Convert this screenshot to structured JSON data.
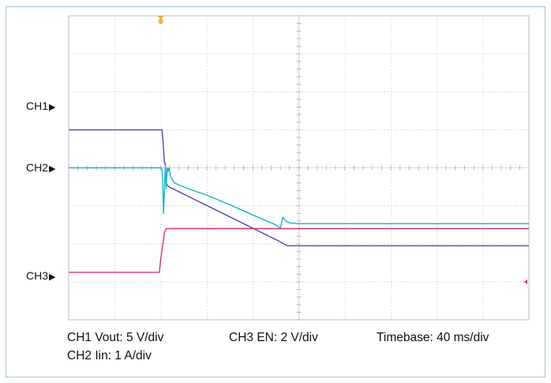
{
  "chart_data": {
    "type": "line",
    "title": "",
    "xlabel": "",
    "ylabel": "",
    "grid": true,
    "divisions": {
      "x": 10,
      "y": 8
    },
    "channels": [
      {
        "id": "CH1",
        "label": "CH1",
        "color": "#4a47b8",
        "ref_div": 3.0
      },
      {
        "id": "CH2",
        "label": "CH2",
        "color": "#1ab3c4",
        "ref_div": 4.0
      },
      {
        "id": "CH3",
        "label": "CH3",
        "color": "#d6336c",
        "ref_div": 6.75
      }
    ],
    "series": [
      {
        "name": "CH1",
        "color": "#4a47b8",
        "x_div": [
          0,
          2.03,
          2.05,
          2.08,
          2.1,
          2.12,
          2.14,
          2.18,
          4.6,
          4.75,
          10
        ],
        "y_div": [
          3.0,
          3.0,
          3.3,
          3.85,
          3.9,
          4.4,
          4.45,
          4.5,
          5.95,
          6.05,
          6.05
        ]
      },
      {
        "name": "CH2",
        "color": "#1ab3c4",
        "x_div": [
          0,
          2.02,
          2.04,
          2.06,
          2.08,
          2.1,
          2.12,
          2.14,
          2.16,
          2.18,
          2.22,
          2.3,
          2.6,
          3.0,
          3.5,
          4.0,
          4.5,
          4.6,
          4.65,
          4.72,
          4.8,
          5.0,
          10
        ],
        "y_div": [
          4.0,
          4.0,
          4.15,
          5.2,
          4.6,
          3.95,
          4.55,
          4.0,
          4.1,
          4.0,
          4.25,
          4.4,
          4.55,
          4.72,
          4.97,
          5.24,
          5.5,
          5.6,
          5.3,
          5.4,
          5.45,
          5.47,
          5.47
        ]
      },
      {
        "name": "CH3",
        "color": "#d6336c",
        "x_div": [
          0,
          1.97,
          2.0,
          2.08,
          2.12,
          2.2,
          10
        ],
        "y_div": [
          6.75,
          6.75,
          6.4,
          5.7,
          5.6,
          5.6,
          5.6
        ]
      }
    ],
    "trigger_marker": {
      "label": "T",
      "color": "#e8a030",
      "x_div": 2.0
    },
    "ch3_side_marker": {
      "color": "#d6336c",
      "y_div": 7.0
    }
  },
  "caption": {
    "ch1": "CH1 Vout: 5 V/div",
    "ch3": "CH3 EN: 2 V/div",
    "timebase": "Timebase: 40 ms/div",
    "ch2": "CH2 Iin: 1 A/div"
  }
}
